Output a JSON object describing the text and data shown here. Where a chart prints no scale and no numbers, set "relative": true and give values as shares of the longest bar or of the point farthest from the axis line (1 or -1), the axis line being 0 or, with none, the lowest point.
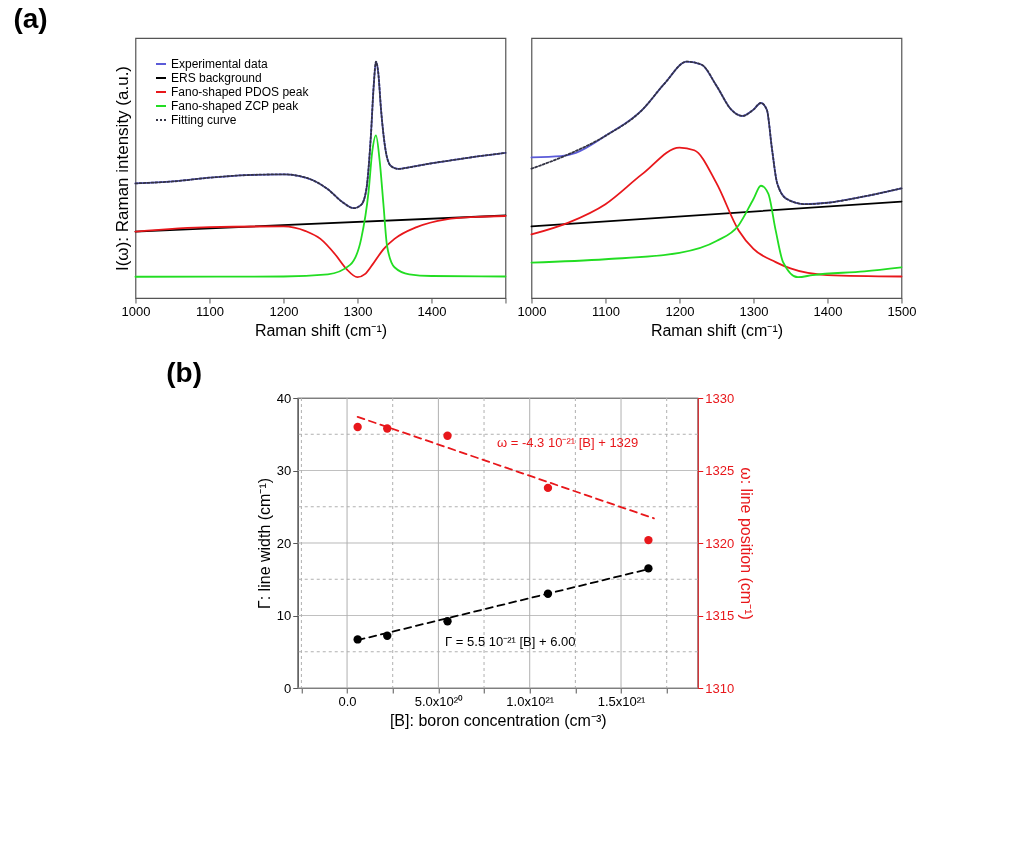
{
  "chart_data": [
    {
      "type": "line",
      "title": "(a)",
      "ylabel": "I(ω): Raman intensity (a.u.)",
      "xlabel": "Raman shift (cm⁻¹)",
      "relative": true,
      "legend": "top left",
      "xlim": [
        1000,
        1500
      ],
      "xticks": [
        1000,
        1100,
        1200,
        1300,
        1400,
        {
          "value": 1500,
          "label": null
        }
      ],
      "series": [
        {
          "name": "Experimental data",
          "color": "#5b5bd8",
          "x": [
            1000,
            1050,
            1100,
            1150,
            1200,
            1220,
            1240,
            1260,
            1280,
            1295,
            1305,
            1312,
            1318,
            1322,
            1325,
            1328,
            1332,
            1338,
            1345,
            1355,
            1370,
            1400,
            1430,
            1460,
            1500
          ],
          "values": [
            0.485,
            0.493,
            0.509,
            0.52,
            0.523,
            0.517,
            0.498,
            0.46,
            0.405,
            0.38,
            0.394,
            0.46,
            0.68,
            0.901,
            1.0,
            0.956,
            0.791,
            0.625,
            0.559,
            0.546,
            0.553,
            0.57,
            0.584,
            0.598,
            0.614
          ]
        },
        {
          "name": "ERS background",
          "color": "#000000",
          "x": [
            1000,
            1500
          ],
          "values": [
            0.281,
            0.349
          ]
        },
        {
          "name": "Fano-shaped PDOS peak",
          "color": "#e8171b",
          "x": [
            1000,
            1100,
            1200,
            1230,
            1250,
            1270,
            1285,
            1300,
            1310,
            1320,
            1335,
            1350,
            1380,
            1420,
            1460,
            1500
          ],
          "values": [
            0.281,
            0.3,
            0.303,
            0.283,
            0.25,
            0.184,
            0.123,
            0.088,
            0.101,
            0.14,
            0.206,
            0.25,
            0.3,
            0.333,
            0.343,
            0.347
          ]
        },
        {
          "name": "Fano-shaped ZCP peak",
          "color": "#22dd22",
          "x": [
            1000,
            1200,
            1260,
            1290,
            1305,
            1315,
            1320,
            1325,
            1330,
            1335,
            1340,
            1350,
            1370,
            1400,
            1500
          ],
          "values": [
            0.09,
            0.091,
            0.1,
            0.14,
            0.25,
            0.45,
            0.62,
            0.688,
            0.58,
            0.4,
            0.22,
            0.13,
            0.1,
            0.093,
            0.091
          ]
        },
        {
          "name": "Fitting curve",
          "color": "#333344",
          "line_style": "dotted",
          "x": [
            1000,
            1050,
            1100,
            1150,
            1200,
            1220,
            1240,
            1260,
            1280,
            1295,
            1305,
            1312,
            1318,
            1322,
            1325,
            1328,
            1332,
            1338,
            1345,
            1355,
            1370,
            1400,
            1430,
            1460,
            1500
          ],
          "values": [
            0.485,
            0.493,
            0.509,
            0.52,
            0.523,
            0.517,
            0.498,
            0.46,
            0.405,
            0.38,
            0.394,
            0.46,
            0.68,
            0.901,
            1.0,
            0.956,
            0.791,
            0.625,
            0.559,
            0.546,
            0.553,
            0.57,
            0.584,
            0.598,
            0.614
          ]
        }
      ]
    },
    {
      "type": "line",
      "xlabel": "Raman shift (cm⁻¹)",
      "relative": true,
      "xlim": [
        1000,
        1500
      ],
      "xticks": [
        1000,
        1100,
        1200,
        1300,
        1400,
        1500
      ],
      "series": [
        {
          "color": "#5b5bd8",
          "x": [
            1000,
            1040,
            1060,
            1100,
            1150,
            1180,
            1210,
            1230,
            1250,
            1270,
            1285,
            1300,
            1310,
            1318,
            1325,
            1332,
            1345,
            1370,
            1400,
            1450,
            1500
          ],
          "values": [
            0.595,
            0.6,
            0.614,
            0.686,
            0.797,
            0.908,
            1.0,
            0.987,
            0.898,
            0.797,
            0.77,
            0.797,
            0.825,
            0.797,
            0.631,
            0.486,
            0.419,
            0.397,
            0.403,
            0.43,
            0.464
          ]
        },
        {
          "color": "#000000",
          "x": [
            1000,
            1500
          ],
          "values": [
            0.303,
            0.408
          ]
        },
        {
          "color": "#e8171b",
          "x": [
            1000,
            1050,
            1100,
            1150,
            1200,
            1220,
            1250,
            1280,
            1300,
            1330,
            1350,
            1400,
            1500
          ],
          "values": [
            0.269,
            0.319,
            0.397,
            0.525,
            0.636,
            0.625,
            0.486,
            0.286,
            0.208,
            0.152,
            0.125,
            0.097,
            0.091
          ]
        },
        {
          "color": "#22dd22",
          "x": [
            1000,
            1100,
            1200,
            1250,
            1280,
            1300,
            1310,
            1320,
            1330,
            1340,
            1360,
            1380,
            1450,
            1500
          ],
          "values": [
            0.15,
            0.164,
            0.191,
            0.241,
            0.308,
            0.419,
            0.475,
            0.442,
            0.286,
            0.152,
            0.088,
            0.097,
            0.113,
            0.13
          ]
        },
        {
          "color": "#333344",
          "line_style": "dotted",
          "x": [
            1000,
            1050,
            1100,
            1150,
            1180,
            1210,
            1230,
            1250,
            1270,
            1285,
            1300,
            1310,
            1318,
            1325,
            1332,
            1345,
            1370,
            1400,
            1450,
            1500
          ],
          "values": [
            0.547,
            0.608,
            0.686,
            0.797,
            0.908,
            1.0,
            0.987,
            0.898,
            0.797,
            0.77,
            0.797,
            0.825,
            0.797,
            0.631,
            0.486,
            0.419,
            0.397,
            0.403,
            0.43,
            0.464
          ]
        }
      ]
    },
    {
      "type": "scatter",
      "title": "(b)",
      "xlabel": "[B]: boron concentration (cm⁻³)",
      "ylabel": "Γ: line width (cm⁻¹)",
      "y2label": "ω: line position (cm⁻¹)",
      "grid": true,
      "marker": "circle",
      "xlim": [
        -2.7e+20,
        1.92e+21
      ],
      "xticks": [
        {
          "value": -2.5e+20,
          "label": null
        },
        {
          "value": 0,
          "label": "0.0"
        },
        {
          "value": 2.5e+20,
          "label": null
        },
        {
          "value": 5e+20,
          "label": "5.0x10²⁰"
        },
        {
          "value": 7.5e+20,
          "label": null
        },
        {
          "value": 1e+21,
          "label": "1.0x10²¹"
        },
        {
          "value": 1.25e+21,
          "label": null
        },
        {
          "value": 1.5e+21,
          "label": "1.5x10²¹"
        },
        {
          "value": 1.75e+21,
          "label": null
        }
      ],
      "ylim": [
        0,
        40
      ],
      "yticks": [
        0,
        {
          "value": 5,
          "label": null
        },
        10,
        {
          "value": 15,
          "label": null
        },
        20,
        {
          "value": 25,
          "label": null
        },
        30,
        {
          "value": 35,
          "label": null
        },
        40
      ],
      "y2lim": [
        1310,
        1330
      ],
      "y2ticks": [
        1310,
        1315,
        1320,
        1325,
        1330
      ],
      "series": [
        {
          "color": "#000000",
          "x": [
            5.8e+19,
            2.2e+20,
            5.5e+20,
            1.1e+21,
            1.65e+21
          ],
          "values": [
            6.7,
            7.2,
            9.2,
            13.0,
            16.5
          ]
        },
        {
          "type": "line",
          "name": "Γ = 5.5 10⁻²¹ [B] + 6.00",
          "line_style": "dashed",
          "marker": "none",
          "color": "#000000",
          "x": [
            5.8e+19,
            1.65e+21
          ],
          "values": [
            6.6,
            16.4
          ]
        },
        {
          "axis": "y2",
          "color": "#e8171b",
          "x": [
            5.8e+19,
            2.2e+20,
            5.5e+20,
            1.1e+21,
            1.65e+21
          ],
          "values": [
            1328.0,
            1327.9,
            1327.4,
            1323.8,
            1320.2
          ]
        },
        {
          "type": "line",
          "name": "ω = -4.3 10⁻²¹ [B] + 1329",
          "line_style": "dashed",
          "marker": "none",
          "axis": "y2",
          "color": "#e8171b",
          "x": [
            5.8e+19,
            1.68e+21
          ],
          "values": [
            1328.7,
            1321.7
          ]
        }
      ]
    }
  ]
}
